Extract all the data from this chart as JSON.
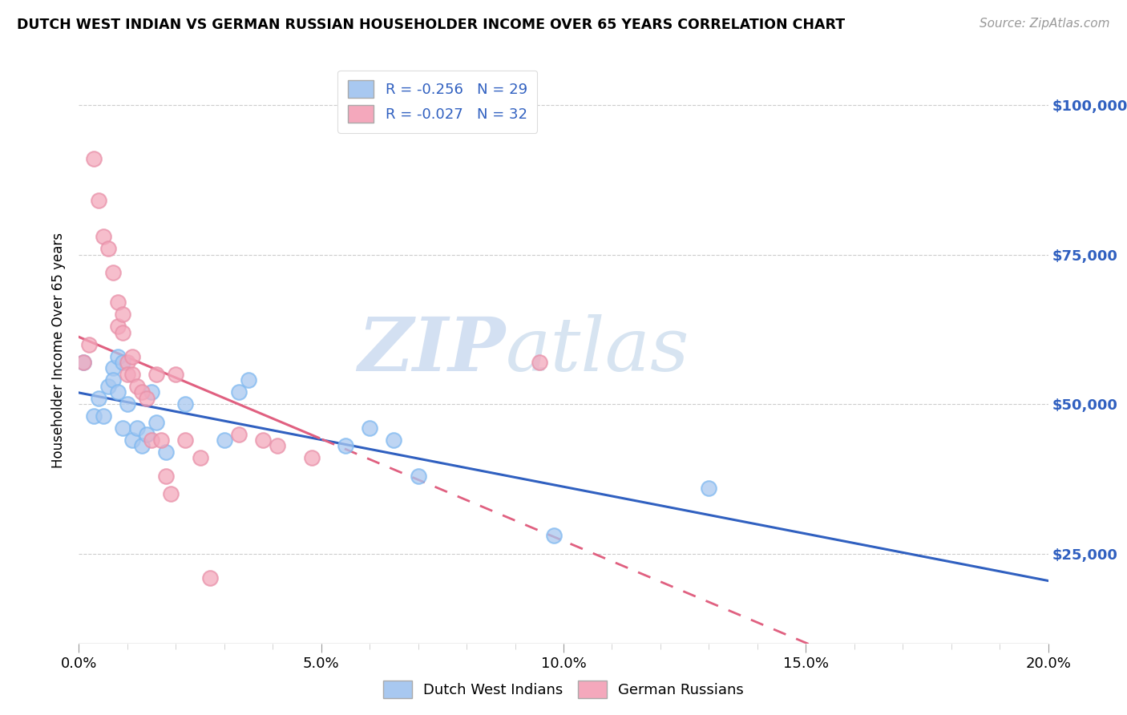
{
  "title": "DUTCH WEST INDIAN VS GERMAN RUSSIAN HOUSEHOLDER INCOME OVER 65 YEARS CORRELATION CHART",
  "source": "Source: ZipAtlas.com",
  "ylabel": "Householder Income Over 65 years",
  "xlabel_ticks": [
    "0.0%",
    "",
    "",
    "",
    "",
    "5.0%",
    "",
    "",
    "",
    "",
    "10.0%",
    "",
    "",
    "",
    "",
    "15.0%",
    "",
    "",
    "",
    "",
    "20.0%"
  ],
  "xlabel_vals": [
    0.0,
    0.01,
    0.02,
    0.03,
    0.04,
    0.05,
    0.06,
    0.07,
    0.08,
    0.09,
    0.1,
    0.11,
    0.12,
    0.13,
    0.14,
    0.15,
    0.16,
    0.17,
    0.18,
    0.19,
    0.2
  ],
  "ylabel_ticks": [
    "$25,000",
    "$50,000",
    "$75,000",
    "$100,000"
  ],
  "ylabel_vals": [
    25000,
    50000,
    75000,
    100000
  ],
  "xlim": [
    0.0,
    0.2
  ],
  "ylim": [
    10000,
    108000
  ],
  "blue_R": "-0.256",
  "blue_N": "29",
  "pink_R": "-0.027",
  "pink_N": "32",
  "blue_color": "#A8C8F0",
  "pink_color": "#F4A8BC",
  "blue_line_color": "#3060C0",
  "pink_line_color": "#E06080",
  "watermark_zip": "ZIP",
  "watermark_atlas": "atlas",
  "dutch_west_indian_x": [
    0.001,
    0.003,
    0.004,
    0.005,
    0.006,
    0.007,
    0.007,
    0.008,
    0.008,
    0.009,
    0.009,
    0.01,
    0.011,
    0.012,
    0.013,
    0.014,
    0.015,
    0.016,
    0.018,
    0.022,
    0.03,
    0.033,
    0.035,
    0.055,
    0.06,
    0.065,
    0.07,
    0.098,
    0.13
  ],
  "dutch_west_indian_y": [
    57000,
    48000,
    51000,
    48000,
    53000,
    56000,
    54000,
    52000,
    58000,
    46000,
    57000,
    50000,
    44000,
    46000,
    43000,
    45000,
    52000,
    47000,
    42000,
    50000,
    44000,
    52000,
    54000,
    43000,
    46000,
    44000,
    38000,
    28000,
    36000
  ],
  "german_russian_x": [
    0.001,
    0.002,
    0.003,
    0.004,
    0.005,
    0.006,
    0.007,
    0.008,
    0.008,
    0.009,
    0.009,
    0.01,
    0.01,
    0.011,
    0.011,
    0.012,
    0.013,
    0.014,
    0.015,
    0.016,
    0.017,
    0.018,
    0.019,
    0.02,
    0.022,
    0.025,
    0.027,
    0.033,
    0.038,
    0.041,
    0.048,
    0.095
  ],
  "german_russian_y": [
    57000,
    60000,
    91000,
    84000,
    78000,
    76000,
    72000,
    67000,
    63000,
    65000,
    62000,
    57000,
    55000,
    58000,
    55000,
    53000,
    52000,
    51000,
    44000,
    55000,
    44000,
    38000,
    35000,
    55000,
    44000,
    41000,
    21000,
    45000,
    44000,
    43000,
    41000,
    57000
  ]
}
